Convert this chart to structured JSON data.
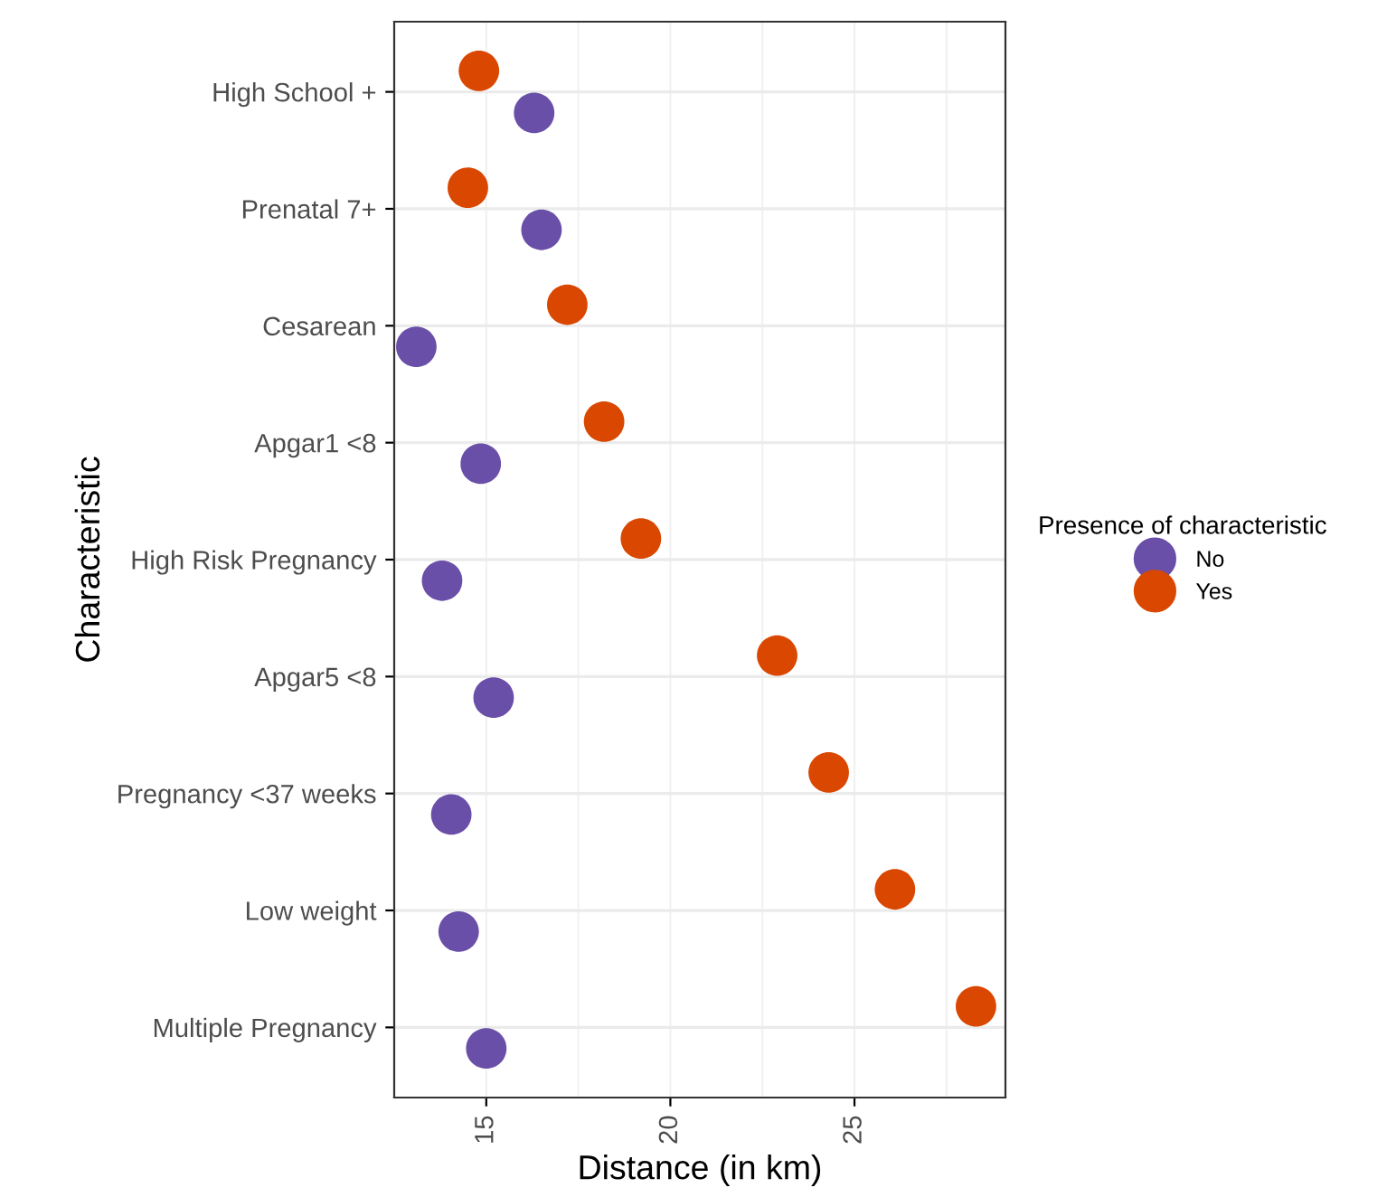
{
  "chart_data": {
    "type": "scatter",
    "orientation": "horizontal",
    "xlabel": "Distance (in km)",
    "ylabel": "Characteristic",
    "legend_title": "Presence of characteristic",
    "legend": "right",
    "grid": true,
    "marker": "circle",
    "categories": [
      "High School +",
      "Prenatal 7+",
      "Cesarean",
      "Apgar1 <8",
      "High Risk Pregnancy",
      "Apgar5 <8",
      "Pregnancy <37 weeks",
      "Low weight",
      "Multiple Pregnancy"
    ],
    "xlim": [
      12.5,
      29.1
    ],
    "xticks": [
      15,
      20,
      25
    ],
    "series": [
      {
        "name": "No",
        "color": "#6a4fa8",
        "values": [
          16.3,
          16.5,
          13.1,
          14.85,
          13.8,
          15.2,
          14.05,
          14.25,
          15.0
        ]
      },
      {
        "name": "Yes",
        "color": "#d94701",
        "values": [
          14.8,
          14.5,
          17.2,
          18.2,
          19.2,
          22.9,
          24.3,
          26.1,
          28.3
        ]
      }
    ]
  }
}
